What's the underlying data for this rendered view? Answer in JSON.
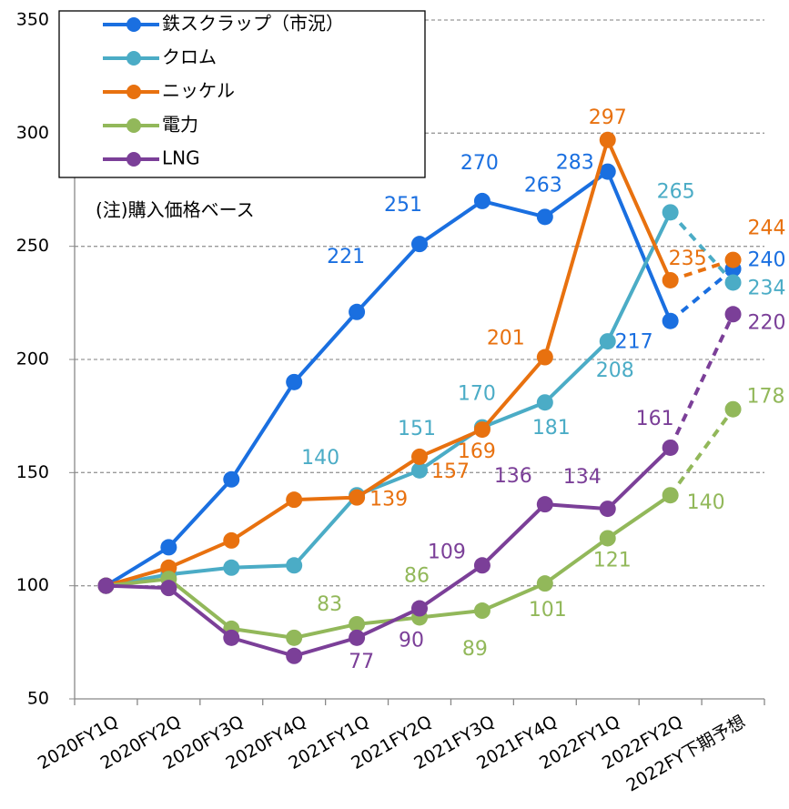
{
  "chart_data": {
    "type": "line",
    "annotation": "(注)購入価格ベース",
    "categories": [
      "2020FY1Q",
      "2020FY2Q",
      "2020FY3Q",
      "2020FY4Q",
      "2021FY1Q",
      "2021FY2Q",
      "2021FY3Q",
      "2021FY4Q",
      "2022FY1Q",
      "2022FY2Q",
      "2022FY下期予想"
    ],
    "series": [
      {
        "name": "鉄スクラップ（市況）",
        "color": "#1a6fe0",
        "values": [
          100,
          117,
          147,
          190,
          221,
          251,
          270,
          263,
          283,
          217,
          240
        ],
        "value_labels": [
          null,
          null,
          null,
          null,
          "221",
          "251",
          "270",
          "263",
          "283",
          "217",
          "240"
        ]
      },
      {
        "name": "クロム",
        "color": "#4bacc6",
        "values": [
          100,
          105,
          108,
          109,
          140,
          151,
          170,
          181,
          208,
          265,
          234
        ],
        "value_labels": [
          null,
          null,
          null,
          null,
          "140",
          "151",
          "170",
          "181",
          "208",
          "265",
          "234"
        ]
      },
      {
        "name": "ニッケル",
        "color": "#e8710f",
        "values": [
          100,
          108,
          120,
          138,
          139,
          157,
          169,
          201,
          297,
          235,
          244
        ],
        "value_labels": [
          null,
          null,
          null,
          null,
          "139",
          "157",
          "169",
          "201",
          "297",
          "235",
          "244"
        ]
      },
      {
        "name": "電力",
        "color": "#92b85a",
        "values": [
          100,
          103,
          81,
          77,
          83,
          86,
          89,
          101,
          121,
          140,
          178
        ],
        "value_labels": [
          null,
          null,
          null,
          null,
          "83",
          "86",
          "89",
          "101",
          "121",
          "140",
          "178"
        ]
      },
      {
        "name": "LNG",
        "color": "#7b3f98",
        "values": [
          100,
          99,
          77,
          69,
          77,
          90,
          109,
          136,
          134,
          161,
          220
        ],
        "value_labels": [
          null,
          null,
          null,
          null,
          "77",
          "90",
          "109",
          "136",
          "134",
          "161",
          "220"
        ]
      }
    ],
    "dash_last_segment": true,
    "ylim": [
      50,
      350
    ],
    "yticks": [
      50,
      100,
      150,
      200,
      250,
      300,
      350
    ],
    "grid": true,
    "legend": "upper left"
  }
}
